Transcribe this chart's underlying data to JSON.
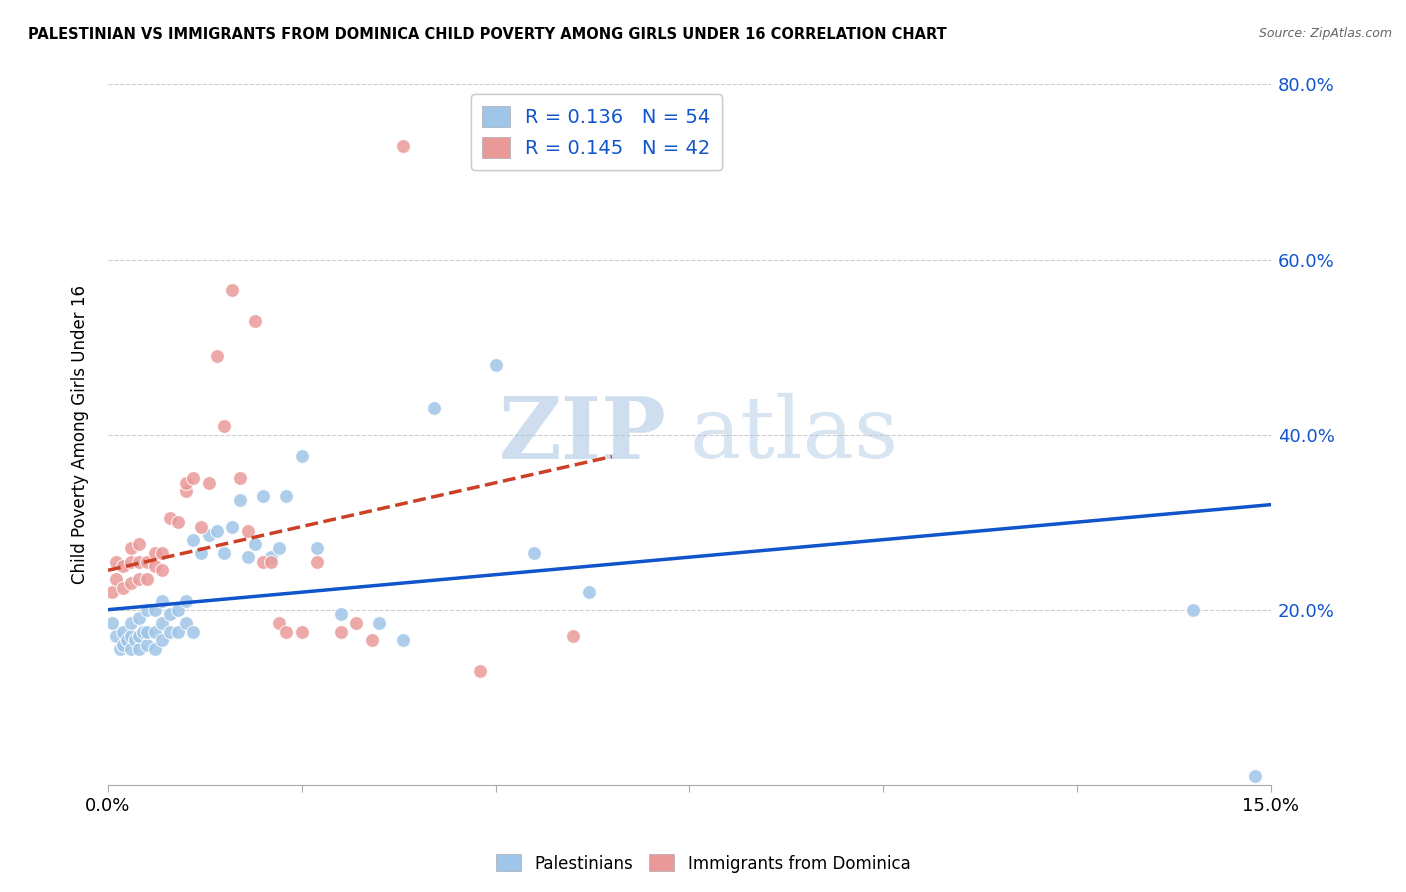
{
  "title": "PALESTINIAN VS IMMIGRANTS FROM DOMINICA CHILD POVERTY AMONG GIRLS UNDER 16 CORRELATION CHART",
  "source": "Source: ZipAtlas.com",
  "ylabel": "Child Poverty Among Girls Under 16",
  "xlim": [
    0.0,
    0.15
  ],
  "ylim": [
    0.0,
    0.8
  ],
  "xticks": [
    0.0,
    0.025,
    0.05,
    0.075,
    0.1,
    0.125,
    0.15
  ],
  "yticks": [
    0.0,
    0.2,
    0.4,
    0.6,
    0.8
  ],
  "xticklabels": [
    "0.0%",
    "",
    "",
    "",
    "",
    "",
    "15.0%"
  ],
  "yticklabels": [
    "",
    "20.0%",
    "40.0%",
    "60.0%",
    "80.0%"
  ],
  "legend1_r": "0.136",
  "legend1_n": "54",
  "legend2_r": "0.145",
  "legend2_n": "42",
  "blue_color": "#9fc5e8",
  "pink_color": "#ea9999",
  "blue_line_color": "#1155cc",
  "pink_line_color": "#cc4125",
  "watermark_zip": "ZIP",
  "watermark_atlas": "atlas",
  "blue_points_x": [
    0.0005,
    0.001,
    0.0015,
    0.002,
    0.002,
    0.0025,
    0.003,
    0.003,
    0.003,
    0.0035,
    0.004,
    0.004,
    0.004,
    0.0045,
    0.005,
    0.005,
    0.005,
    0.006,
    0.006,
    0.006,
    0.007,
    0.007,
    0.007,
    0.008,
    0.008,
    0.009,
    0.009,
    0.01,
    0.01,
    0.011,
    0.011,
    0.012,
    0.013,
    0.014,
    0.015,
    0.016,
    0.017,
    0.018,
    0.019,
    0.02,
    0.021,
    0.022,
    0.023,
    0.025,
    0.027,
    0.03,
    0.035,
    0.038,
    0.042,
    0.05,
    0.055,
    0.062,
    0.14,
    0.148
  ],
  "blue_points_y": [
    0.185,
    0.17,
    0.155,
    0.16,
    0.175,
    0.165,
    0.155,
    0.17,
    0.185,
    0.165,
    0.155,
    0.17,
    0.19,
    0.175,
    0.16,
    0.175,
    0.2,
    0.155,
    0.175,
    0.2,
    0.165,
    0.185,
    0.21,
    0.175,
    0.195,
    0.175,
    0.2,
    0.185,
    0.21,
    0.175,
    0.28,
    0.265,
    0.285,
    0.29,
    0.265,
    0.295,
    0.325,
    0.26,
    0.275,
    0.33,
    0.26,
    0.27,
    0.33,
    0.375,
    0.27,
    0.195,
    0.185,
    0.165,
    0.43,
    0.48,
    0.265,
    0.22,
    0.2,
    0.01
  ],
  "pink_points_x": [
    0.0005,
    0.001,
    0.001,
    0.002,
    0.002,
    0.003,
    0.003,
    0.003,
    0.004,
    0.004,
    0.004,
    0.005,
    0.005,
    0.006,
    0.006,
    0.007,
    0.007,
    0.008,
    0.009,
    0.01,
    0.01,
    0.011,
    0.012,
    0.013,
    0.014,
    0.015,
    0.016,
    0.017,
    0.018,
    0.019,
    0.02,
    0.021,
    0.022,
    0.023,
    0.025,
    0.027,
    0.03,
    0.032,
    0.034,
    0.038,
    0.048,
    0.06
  ],
  "pink_points_y": [
    0.22,
    0.235,
    0.255,
    0.225,
    0.25,
    0.23,
    0.255,
    0.27,
    0.235,
    0.255,
    0.275,
    0.235,
    0.255,
    0.25,
    0.265,
    0.245,
    0.265,
    0.305,
    0.3,
    0.335,
    0.345,
    0.35,
    0.295,
    0.345,
    0.49,
    0.41,
    0.565,
    0.35,
    0.29,
    0.53,
    0.255,
    0.255,
    0.185,
    0.175,
    0.175,
    0.255,
    0.175,
    0.185,
    0.165,
    0.73,
    0.13,
    0.17
  ],
  "blue_trend_x": [
    0.0,
    0.15
  ],
  "blue_trend_y": [
    0.2,
    0.32
  ],
  "pink_trend_x": [
    0.0,
    0.065
  ],
  "pink_trend_y": [
    0.245,
    0.375
  ]
}
